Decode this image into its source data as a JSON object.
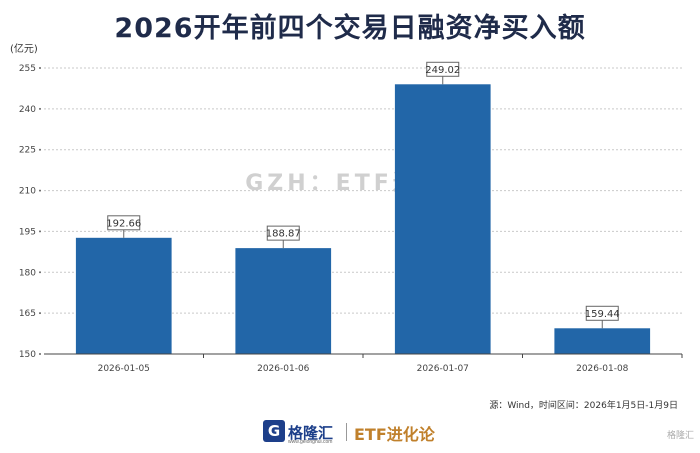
{
  "chart_data": {
    "type": "bar",
    "title": "2026开年前四个交易日融资净买入额",
    "unit": "(亿元)",
    "categories": [
      "2026-01-05",
      "2026-01-06",
      "2026-01-07",
      "2026-01-08"
    ],
    "values": [
      192.66,
      188.87,
      249.02,
      159.44
    ],
    "data_labels": [
      "192.66",
      "188.87",
      "249.02",
      "159.44"
    ],
    "ylim": [
      150,
      255
    ],
    "yticks": [
      150,
      165,
      180,
      195,
      210,
      225,
      240,
      255
    ],
    "grid": true,
    "bar_color": "#2266a8"
  },
  "watermark": "GZH：ETF进化论",
  "source": "源：Wind，时间区间：2026年1月5日-1月9日",
  "footer": {
    "logo_letter": "G",
    "brand_name": "格隆汇",
    "brand_url": "www.gelonghui.com",
    "channel": "ETF进化论",
    "corner_mark": "格隆汇"
  }
}
